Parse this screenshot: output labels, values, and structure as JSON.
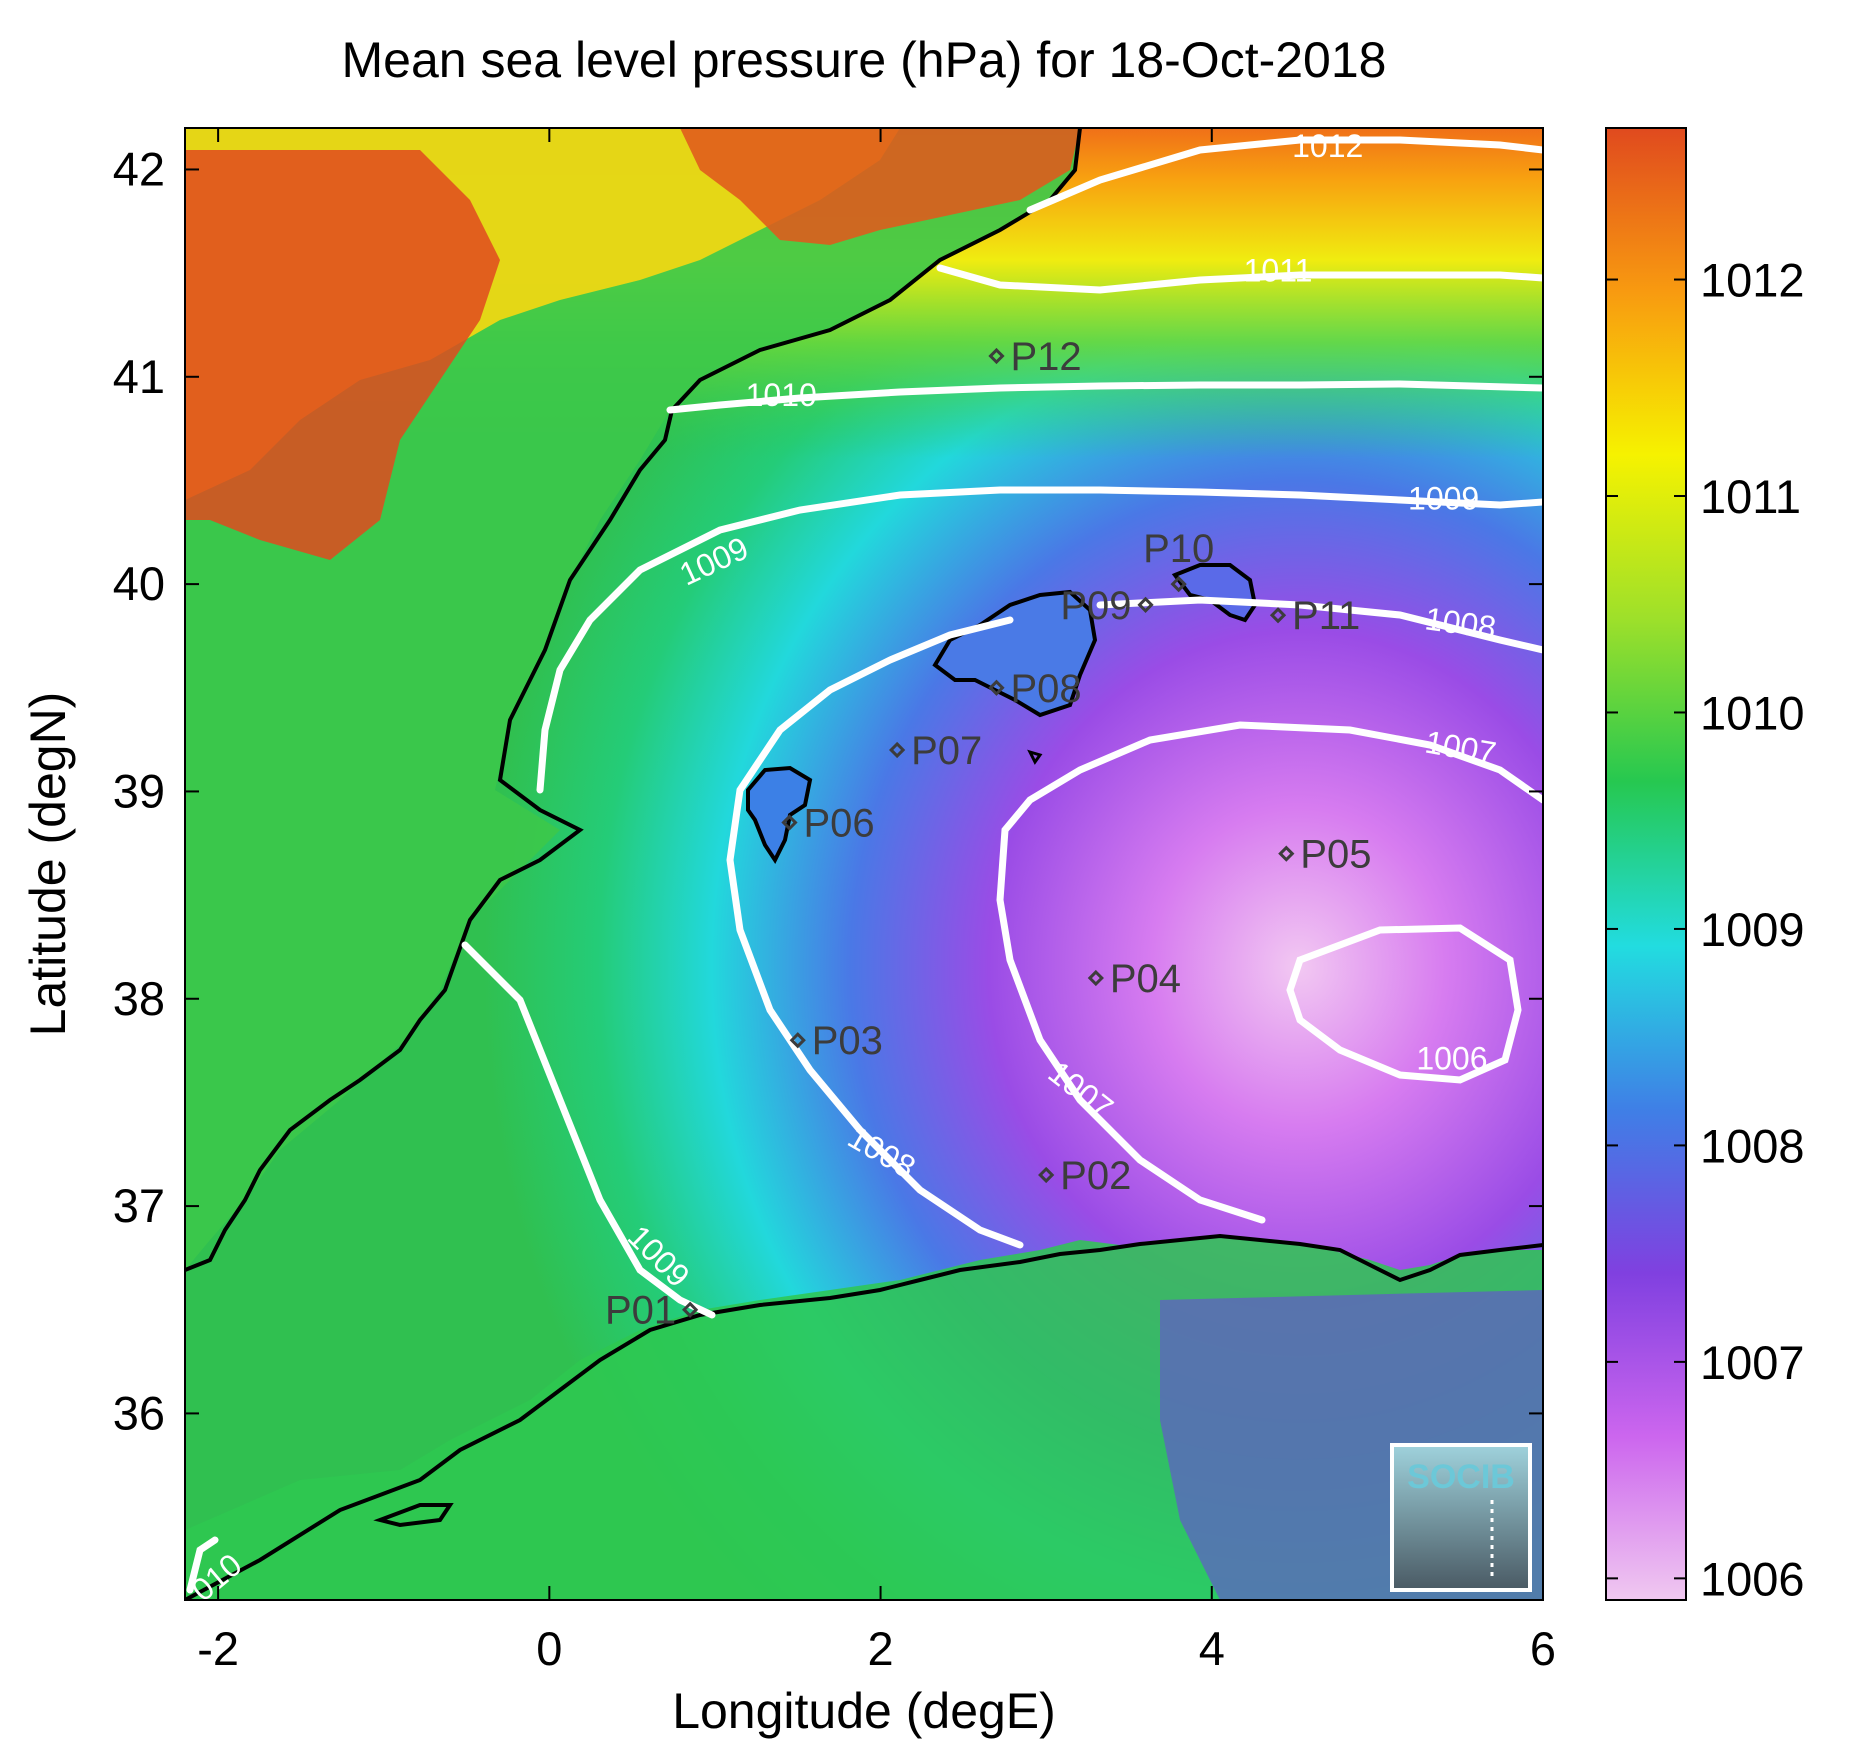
{
  "chart_data": {
    "type": "heatmap",
    "title": "Mean sea level pressure (hPa) for 18-Oct-2018",
    "xlabel": "Longitude (degE)",
    "ylabel": "Latitude (degN)",
    "xlim": [
      -2.2,
      6
    ],
    "ylim": [
      35.1,
      42.2
    ],
    "xticks": [
      -2,
      0,
      2,
      4,
      6
    ],
    "yticks": [
      36,
      37,
      38,
      39,
      40,
      41,
      42
    ],
    "colorbar": {
      "range": [
        1005.9,
        1012.7
      ],
      "ticks": [
        1006,
        1007,
        1008,
        1009,
        1010,
        1011,
        1012
      ],
      "colors": [
        "#f0c8f0",
        "#cc66ee",
        "#8040e0",
        "#3f7fe6",
        "#22dce0",
        "#26c850",
        "#9ee02a",
        "#f6f200",
        "#f89a10",
        "#e04a1e"
      ]
    },
    "low_center": {
      "lon": 5.1,
      "lat": 38.1,
      "value": 1006
    },
    "contour_labels": [
      {
        "text": "1012",
        "lon": 4.7,
        "lat": 42.1
      },
      {
        "text": "1011",
        "lon": 4.4,
        "lat": 41.5
      },
      {
        "text": "1010",
        "lon": 1.4,
        "lat": 40.9
      },
      {
        "text": "1009",
        "lon": 1.0,
        "lat": 40.1,
        "rotate": -25
      },
      {
        "text": "1009",
        "lon": 5.4,
        "lat": 40.4
      },
      {
        "text": "1008",
        "lon": 5.5,
        "lat": 39.8,
        "rotate": 8
      },
      {
        "text": "1007",
        "lon": 5.5,
        "lat": 39.2,
        "rotate": 10
      },
      {
        "text": "1006",
        "lon": 5.45,
        "lat": 37.7
      },
      {
        "text": "1007",
        "lon": 3.2,
        "lat": 37.55,
        "rotate": 38
      },
      {
        "text": "1008",
        "lon": 2.0,
        "lat": 37.25,
        "rotate": 30
      },
      {
        "text": "1009",
        "lon": 0.65,
        "lat": 36.75,
        "rotate": 45
      },
      {
        "text": "010",
        "lon": -2.0,
        "lat": 35.2,
        "rotate": -40
      }
    ],
    "stations": [
      {
        "name": "P01",
        "lon": 0.85,
        "lat": 36.5
      },
      {
        "name": "P02",
        "lon": 3.0,
        "lat": 37.15
      },
      {
        "name": "P03",
        "lon": 1.5,
        "lat": 37.8
      },
      {
        "name": "P04",
        "lon": 3.3,
        "lat": 38.1
      },
      {
        "name": "P05",
        "lon": 4.45,
        "lat": 38.7
      },
      {
        "name": "P06",
        "lon": 1.45,
        "lat": 38.85
      },
      {
        "name": "P07",
        "lon": 2.1,
        "lat": 39.2
      },
      {
        "name": "P08",
        "lon": 2.7,
        "lat": 39.5
      },
      {
        "name": "P09",
        "lon": 3.6,
        "lat": 39.9
      },
      {
        "name": "P10",
        "lon": 3.8,
        "lat": 40.0
      },
      {
        "name": "P11",
        "lon": 4.4,
        "lat": 39.85
      },
      {
        "name": "P12",
        "lon": 2.7,
        "lat": 41.1
      }
    ]
  },
  "logo": {
    "text": "SOCIB"
  }
}
